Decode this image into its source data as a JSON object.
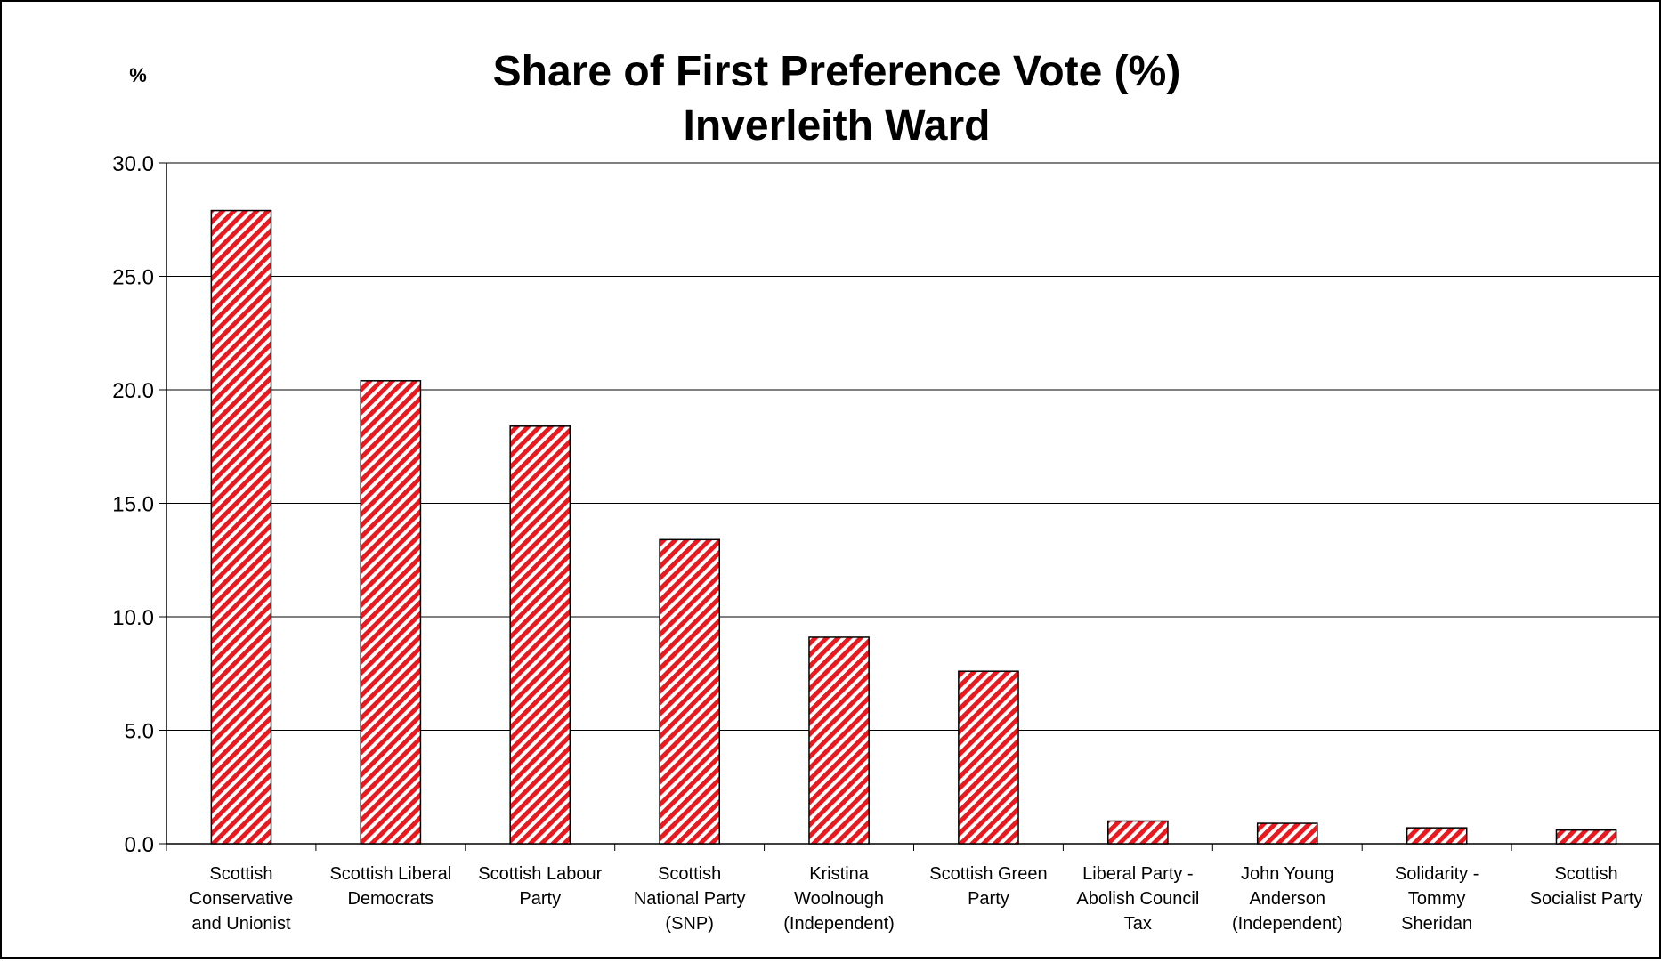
{
  "chart_data": {
    "type": "bar",
    "title": "Share of First Preference Vote (%)",
    "subtitle": "Inverleith Ward",
    "ylabel": "%",
    "ylim": [
      0,
      30
    ],
    "yticks": [
      "0.0",
      "5.0",
      "10.0",
      "15.0",
      "20.0",
      "25.0",
      "30.0"
    ],
    "grid": true,
    "legend": "none",
    "bar_color": "#e8191f",
    "bar_pattern": "diagonal-hatch",
    "categories": [
      [
        "Scottish",
        "Conservative",
        "and Unionist"
      ],
      [
        "Scottish Liberal",
        "Democrats"
      ],
      [
        "Scottish Labour",
        "Party"
      ],
      [
        "Scottish",
        "National Party",
        "(SNP)"
      ],
      [
        "Kristina",
        "Woolnough",
        "(Independent)"
      ],
      [
        "Scottish Green",
        "Party"
      ],
      [
        "Liberal Party -",
        "Abolish Council",
        "Tax"
      ],
      [
        "John Young",
        "Anderson",
        "(Independent)"
      ],
      [
        "Solidarity -",
        "Tommy",
        "Sheridan"
      ],
      [
        "Scottish",
        "Socialist Party"
      ]
    ],
    "values": [
      27.9,
      20.4,
      18.4,
      13.4,
      9.1,
      7.6,
      1.0,
      0.9,
      0.7,
      0.6
    ]
  }
}
